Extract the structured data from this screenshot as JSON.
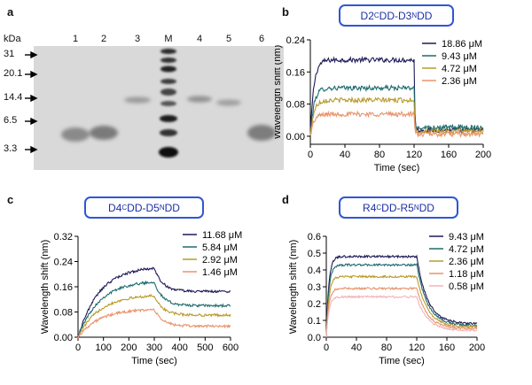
{
  "panel_a": {
    "letter": "a",
    "unit": "kDa",
    "markers": [
      "31",
      "20.1",
      "14.4",
      "6.5",
      "3.3"
    ],
    "lanes": [
      "1",
      "2",
      "3",
      "M",
      "4",
      "5",
      "6"
    ]
  },
  "chart_data": [
    {
      "panel": "b",
      "type": "line",
      "title_parts": [
        "D2 ",
        "C",
        "DD-D3  ",
        "N",
        "DD"
      ],
      "xlabel": "Time (sec)",
      "ylabel": "Wavelength shift (nm)",
      "xlim": [
        0,
        200
      ],
      "ylim": [
        -0.02,
        0.24
      ],
      "xticks": [
        0,
        40,
        80,
        120,
        160,
        200
      ],
      "xtick_labels": [
        "0",
        "40",
        "80",
        "120",
        "160",
        "200"
      ],
      "yticks": [
        0,
        0.08,
        0.16,
        0.24
      ],
      "ytick_labels": [
        "0.00",
        "0.08",
        "0.16",
        "0.24"
      ],
      "kinetics": {
        "t_switch": 120,
        "assoc_rate": 0.25,
        "dissoc_rate": 1.5,
        "noise": 0.006
      },
      "series": [
        {
          "name": "18.86 μM",
          "color": "#1d1a57",
          "plateau": 0.19,
          "residual": 0.015
        },
        {
          "name": "9.43 μM",
          "color": "#1f6b6e",
          "plateau": 0.12,
          "residual": 0.022
        },
        {
          "name": "4.72 μM",
          "color": "#b99a2a",
          "plateau": 0.09,
          "residual": 0.012
        },
        {
          "name": "2.36 μM",
          "color": "#e8936b",
          "plateau": 0.055,
          "residual": 0.005
        }
      ]
    },
    {
      "panel": "c",
      "type": "line",
      "title_parts": [
        "D4 ",
        "C",
        "DD-D5  ",
        "N",
        "DD"
      ],
      "xlabel": "Time (sec)",
      "ylabel": "Wavelength shift (nm)",
      "xlim": [
        0,
        600
      ],
      "ylim": [
        0,
        0.32
      ],
      "xticks": [
        0,
        100,
        200,
        300,
        400,
        500,
        600
      ],
      "xtick_labels": [
        "0",
        "100",
        "200",
        "300",
        "400",
        "500",
        "600"
      ],
      "yticks": [
        0,
        0.08,
        0.16,
        0.24,
        0.32
      ],
      "ytick_labels": [
        "0.00",
        "0.08",
        "0.16",
        "0.24",
        "0.32"
      ],
      "kinetics": {
        "t_switch": 300,
        "assoc_rate": 0.012,
        "dissoc_rate": 0.03,
        "noise": 0.004
      },
      "series": [
        {
          "name": "11.68 μM",
          "color": "#1d1a57",
          "plateau": 0.225,
          "residual": 0.145
        },
        {
          "name": "5.84 μM",
          "color": "#1f6b6e",
          "plateau": 0.18,
          "residual": 0.1
        },
        {
          "name": "2.92 μM",
          "color": "#b99a2a",
          "plateau": 0.135,
          "residual": 0.07
        },
        {
          "name": "1.46 μM",
          "color": "#e8936b",
          "plateau": 0.09,
          "residual": 0.035
        }
      ]
    },
    {
      "panel": "d",
      "type": "line",
      "title_parts": [
        "R4 ",
        "C",
        "DD-R5  ",
        "N",
        "DD"
      ],
      "xlabel": "Time (sec)",
      "ylabel": "Wavelength shift (nm)",
      "xlim": [
        0,
        200
      ],
      "ylim": [
        0,
        0.6
      ],
      "xticks": [
        0,
        40,
        80,
        120,
        160,
        200
      ],
      "xtick_labels": [
        "0",
        "40",
        "80",
        "120",
        "160",
        "200"
      ],
      "yticks": [
        0,
        0.1,
        0.2,
        0.3,
        0.4,
        0.5,
        0.6
      ],
      "ytick_labels": [
        "0.0",
        "0.1",
        "0.2",
        "0.3",
        "0.4",
        "0.5",
        "0.6"
      ],
      "kinetics": {
        "t_switch": 120,
        "assoc_rate": 0.3,
        "dissoc_rate": 0.07,
        "noise": 0.006
      },
      "series": [
        {
          "name": "9.43 μM",
          "color": "#1d1a57",
          "plateau": 0.48,
          "residual": 0.08
        },
        {
          "name": "4.72 μM",
          "color": "#1f6b6e",
          "plateau": 0.43,
          "residual": 0.07
        },
        {
          "name": "2.36 μM",
          "color": "#b99a2a",
          "plateau": 0.36,
          "residual": 0.06
        },
        {
          "name": "1.18 μM",
          "color": "#e8936b",
          "plateau": 0.29,
          "residual": 0.05
        },
        {
          "name": "0.58 μM",
          "color": "#f2b3b8",
          "plateau": 0.24,
          "residual": 0.04
        }
      ]
    }
  ]
}
